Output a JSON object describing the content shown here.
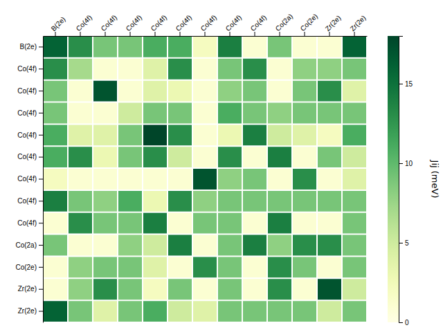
{
  "chart_data": {
    "type": "heatmap",
    "categories": [
      "B(2e)",
      "Co(4f)",
      "Co(4f)",
      "Co(4f)",
      "Co(4f)",
      "Co(4f)",
      "Co(4f)",
      "Co(4f)",
      "Co(4f)",
      "Co(2a)",
      "Co(2e)",
      "Zr(2e)",
      "Zr(2e)"
    ],
    "values": [
      [
        16,
        13,
        9,
        9,
        11,
        11,
        2,
        14,
        1,
        9,
        1,
        1,
        16
      ],
      [
        13,
        7,
        1,
        1,
        4,
        13,
        1,
        9,
        13,
        1,
        8,
        8,
        9
      ],
      [
        9,
        1,
        17,
        1,
        4,
        3,
        1,
        8,
        9,
        1,
        9,
        13,
        4
      ],
      [
        9,
        1,
        1,
        5,
        9,
        9,
        1,
        11,
        9,
        8,
        9,
        9,
        9
      ],
      [
        11,
        4,
        4,
        9,
        18,
        13,
        1,
        3,
        14,
        5,
        4,
        2,
        11
      ],
      [
        11,
        13,
        3,
        9,
        13,
        5,
        1,
        13,
        1,
        14,
        1,
        9,
        5
      ],
      [
        2,
        1,
        1,
        1,
        1,
        1,
        17,
        8,
        9,
        1,
        13,
        1,
        4
      ],
      [
        14,
        9,
        8,
        11,
        3,
        13,
        8,
        9,
        9,
        9,
        9,
        9,
        9
      ],
      [
        1,
        13,
        9,
        9,
        14,
        1,
        9,
        9,
        1,
        14,
        1,
        1,
        9
      ],
      [
        9,
        1,
        1,
        8,
        5,
        14,
        1,
        9,
        14,
        8,
        13,
        13,
        9
      ],
      [
        1,
        8,
        9,
        9,
        4,
        1,
        13,
        9,
        1,
        13,
        9,
        1,
        9
      ],
      [
        1,
        8,
        13,
        9,
        2,
        9,
        1,
        9,
        1,
        13,
        1,
        17,
        5
      ],
      [
        16,
        9,
        4,
        9,
        11,
        5,
        4,
        9,
        9,
        9,
        9,
        5,
        9
      ]
    ],
    "color": "YlGn",
    "colorbar_lim": [
      0,
      18
    ],
    "colorbar_ticks": [
      0,
      5,
      10,
      15
    ],
    "colorbar_label": "Jij (meV)",
    "grid": true
  }
}
